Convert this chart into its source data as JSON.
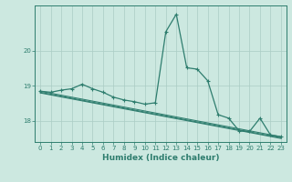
{
  "xlabel": "Humidex (Indice chaleur)",
  "bg_color": "#cce8e0",
  "line_color": "#2e7d6e",
  "grid_color": "#aaccc4",
  "xlim": [
    -0.5,
    23.5
  ],
  "ylim": [
    17.4,
    21.3
  ],
  "yticks": [
    18,
    19,
    20
  ],
  "xticks": [
    0,
    1,
    2,
    3,
    4,
    5,
    6,
    7,
    8,
    9,
    10,
    11,
    12,
    13,
    14,
    15,
    16,
    17,
    18,
    19,
    20,
    21,
    22,
    23
  ],
  "series_main": {
    "x": [
      0,
      1,
      2,
      3,
      4,
      5,
      6,
      7,
      8,
      9,
      10,
      11,
      12,
      13,
      14,
      15,
      16,
      17,
      18,
      19,
      20,
      21,
      22,
      23
    ],
    "y": [
      18.85,
      18.82,
      18.88,
      18.92,
      19.05,
      18.92,
      18.82,
      18.68,
      18.6,
      18.55,
      18.48,
      18.52,
      20.55,
      21.05,
      19.52,
      19.48,
      19.15,
      18.18,
      18.08,
      17.72,
      17.7,
      18.08,
      17.6,
      17.55
    ]
  },
  "series_trends": [
    {
      "x": [
        0,
        23
      ],
      "y": [
        18.85,
        17.55
      ]
    },
    {
      "x": [
        0,
        23
      ],
      "y": [
        18.82,
        17.52
      ]
    },
    {
      "x": [
        0,
        23
      ],
      "y": [
        18.8,
        17.5
      ]
    }
  ],
  "marker_size": 2.5,
  "linewidth": 0.9
}
